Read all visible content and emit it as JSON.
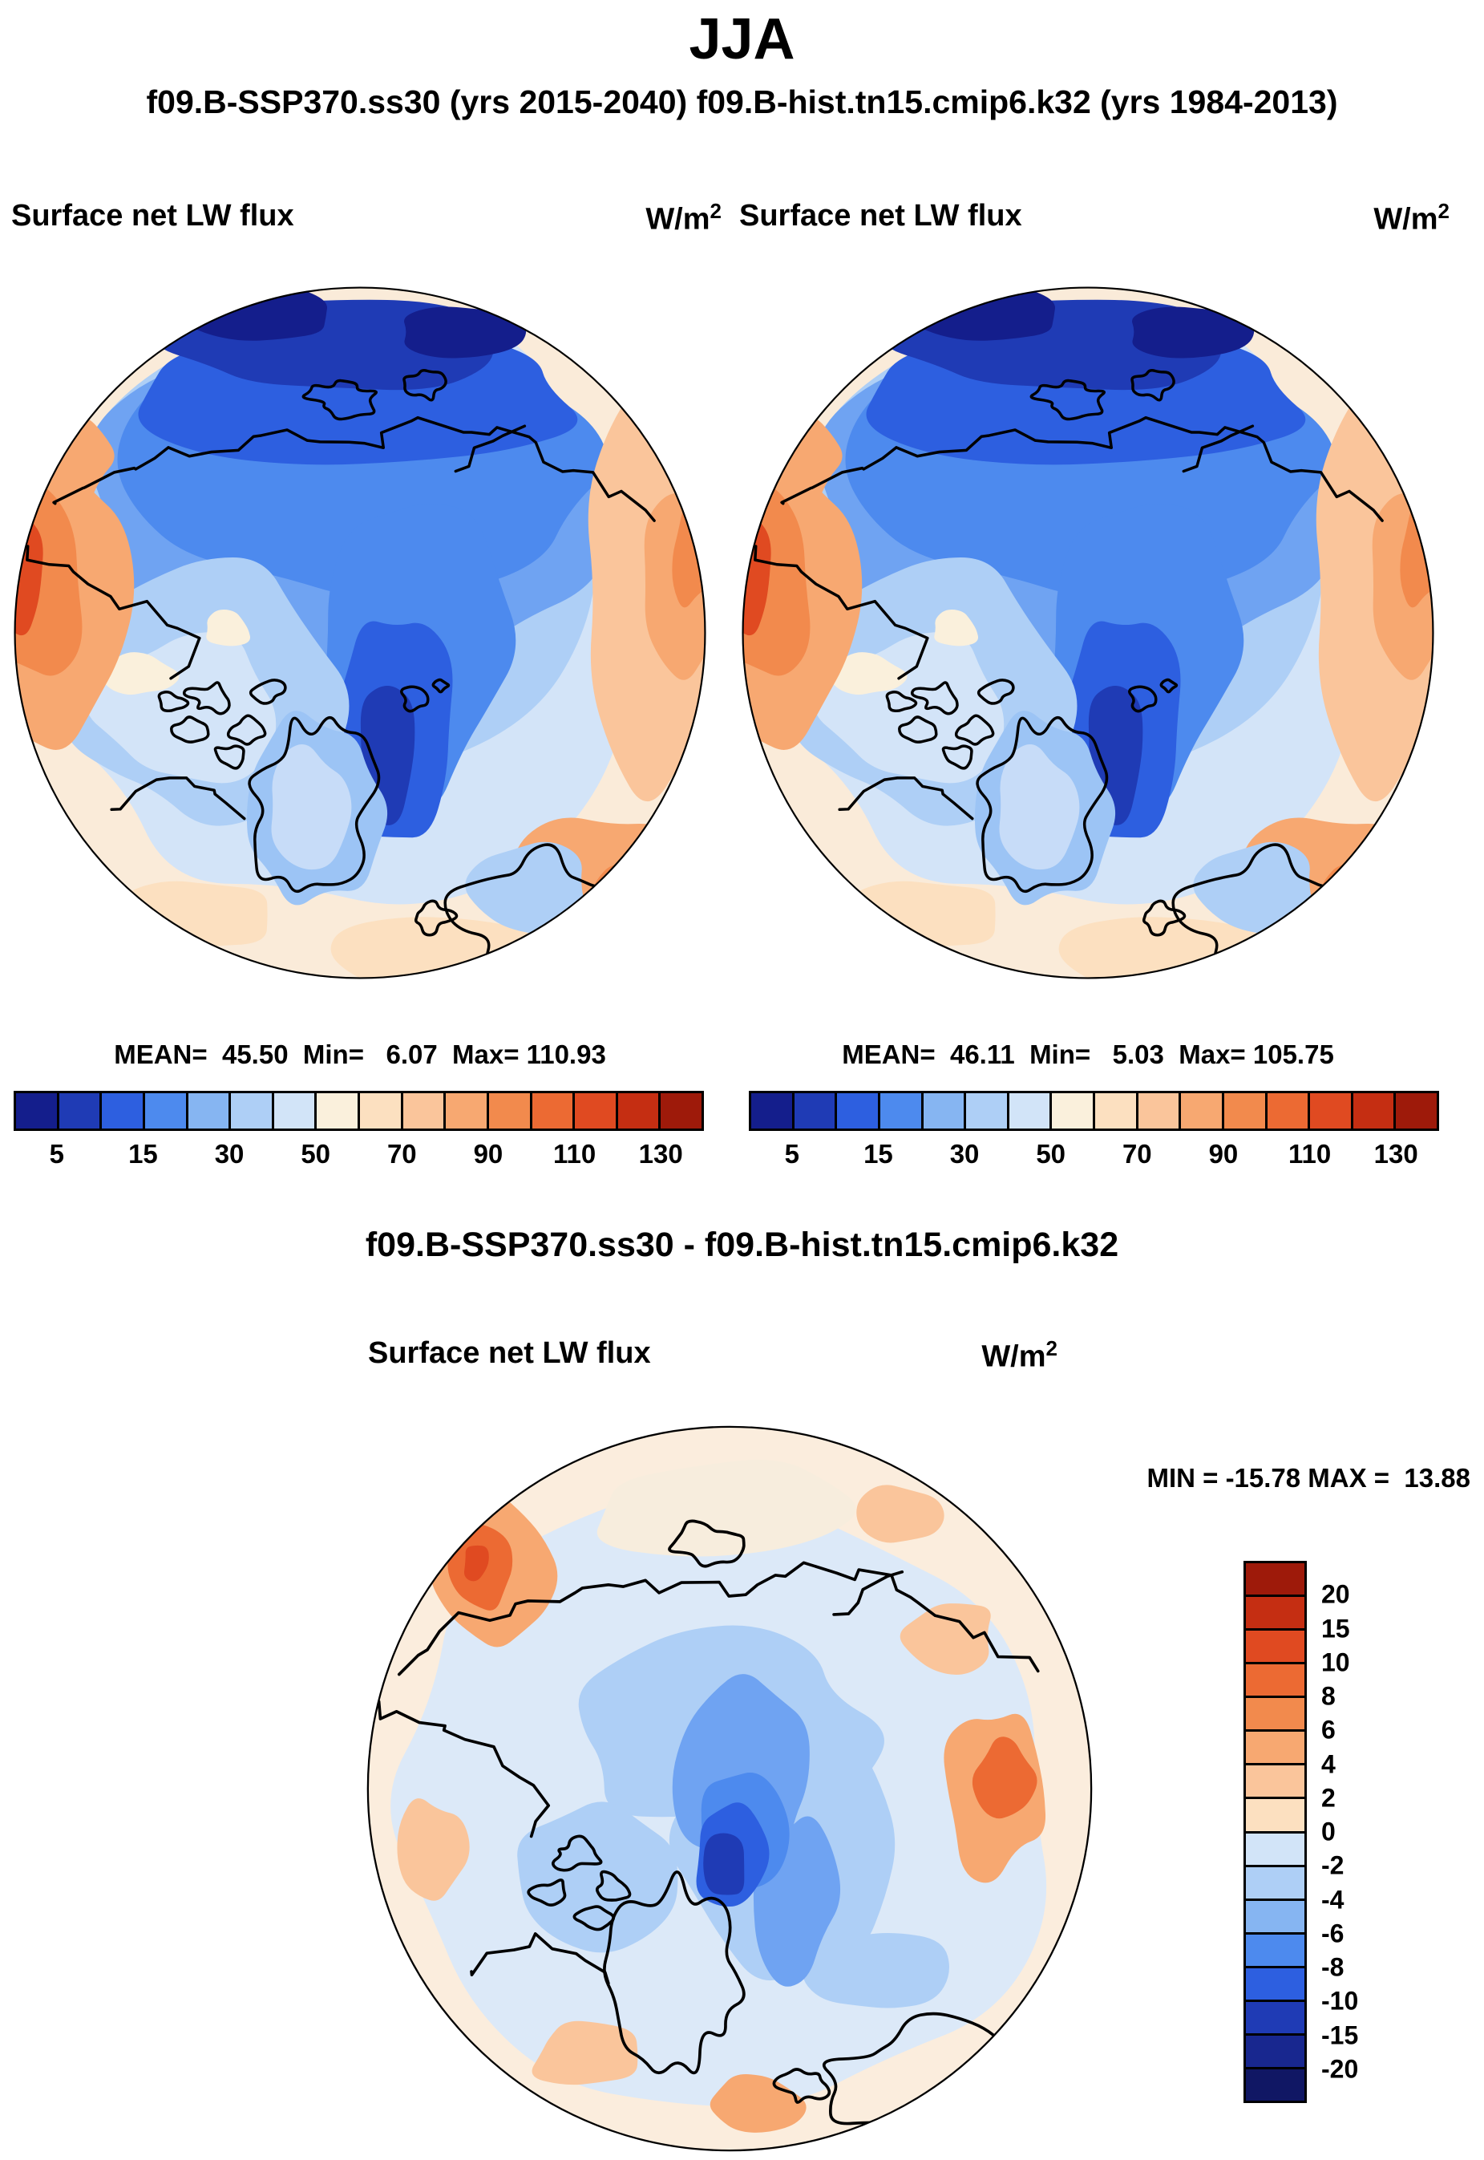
{
  "figure": {
    "title": "JJA",
    "subtitle": "f09.B-SSP370.ss30 (yrs 2015-2040)  f09.B-hist.tn15.cmip6.k32 (yrs 1984-2013)",
    "diff_title": "f09.B-SSP370.ss30 - f09.B-hist.tn15.cmip6.k32"
  },
  "panel_left": {
    "var_label": "Surface net LW flux",
    "units_base": "W/m",
    "units_exp": "2",
    "stats_line": "MEAN=  45.50  Min=   6.07  Max= 110.93"
  },
  "panel_right": {
    "var_label": "Surface net LW flux",
    "units_base": "W/m",
    "units_exp": "2",
    "stats_line": "MEAN=  46.11  Min=   5.03  Max= 105.75"
  },
  "panel_diff": {
    "var_label": "Surface net LW flux",
    "units_base": "W/m",
    "units_exp": "2",
    "minmax_line": "MIN = -15.78 MAX =  13.88"
  },
  "colorbar_h": {
    "colors": [
      "#141E8C",
      "#1F3BB5",
      "#2D5FE0",
      "#4D8AEE",
      "#86B5F2",
      "#AECFF6",
      "#D2E4F8",
      "#FAF0DC",
      "#FCE0C0",
      "#FAC59B",
      "#F7A871",
      "#F28A4D",
      "#EC6A33",
      "#E04A21",
      "#C52E12",
      "#9E1A0A"
    ],
    "ticks": [
      {
        "label": "5",
        "index": 1
      },
      {
        "label": "15",
        "index": 3
      },
      {
        "label": "30",
        "index": 5
      },
      {
        "label": "50",
        "index": 7
      },
      {
        "label": "70",
        "index": 9
      },
      {
        "label": "90",
        "index": 11
      },
      {
        "label": "110",
        "index": 13
      },
      {
        "label": "130",
        "index": 15
      }
    ]
  },
  "colorbar_v": {
    "colors": [
      "#9E1A0A",
      "#C52E12",
      "#E04A21",
      "#EC6A33",
      "#F28A4D",
      "#F7A871",
      "#FAC59B",
      "#FCE0C0",
      "#D2E4F8",
      "#AECFF6",
      "#86B5F2",
      "#4D8AEE",
      "#2D5FE0",
      "#1F3BB5",
      "#18278F",
      "#101764"
    ],
    "ticks": [
      {
        "label": "20",
        "index": 1
      },
      {
        "label": "15",
        "index": 2
      },
      {
        "label": "10",
        "index": 3
      },
      {
        "label": "8",
        "index": 4
      },
      {
        "label": "6",
        "index": 5
      },
      {
        "label": "4",
        "index": 6
      },
      {
        "label": "2",
        "index": 7
      },
      {
        "label": "0",
        "index": 8
      },
      {
        "label": "-2",
        "index": 9
      },
      {
        "label": "-4",
        "index": 10
      },
      {
        "label": "-6",
        "index": 11
      },
      {
        "label": "-8",
        "index": 12
      },
      {
        "label": "-10",
        "index": 13
      },
      {
        "label": "-15",
        "index": 14
      },
      {
        "label": "-20",
        "index": 15
      }
    ]
  },
  "map_colors": {
    "base": "#FAEBD9",
    "base2": "#FBEDDD",
    "paleBlue": "#D3E4F8",
    "paleBlue2": "#DCE9F8",
    "lightBlue": "#AECFF6",
    "medBlue": "#6FA3F2",
    "blue": "#4D8AEE",
    "deepBlue": "#2D5FE0",
    "navy": "#1F3BB5",
    "darkNavy": "#141E8C",
    "cream": "#FAF0DC",
    "cream2": "#F7EDDD",
    "palePeach": "#FCE0C0",
    "peach": "#FAC59B",
    "lightOrange": "#F7A871",
    "orange": "#F28A4D",
    "deepOrange": "#EC6A33",
    "red": "#E04A21",
    "greenlandBlue": "#9CC4F5",
    "innerPale": "#C7DCF8"
  },
  "chart_data": [
    {
      "type": "heatmap",
      "subtype": "polar_filled_contour_map",
      "panel": "top-left",
      "title": "Surface net LW flux",
      "season": "JJA",
      "run": "f09.B-SSP370.ss30",
      "years": "2015-2040",
      "units": "W/m2",
      "stats": {
        "mean": 45.5,
        "min": 6.07,
        "max": 110.93
      },
      "contour_levels": [
        5,
        10,
        15,
        20,
        30,
        40,
        50,
        60,
        70,
        80,
        90,
        100,
        110,
        120,
        130
      ],
      "labeled_levels": [
        5,
        15,
        30,
        50,
        70,
        90,
        110,
        130
      ],
      "palette_low_to_high": [
        "#141E8C",
        "#1F3BB5",
        "#2D5FE0",
        "#4D8AEE",
        "#86B5F2",
        "#AECFF6",
        "#D2E4F8",
        "#FAF0DC",
        "#FCE0C0",
        "#FAC59B",
        "#F7A871",
        "#F28A4D",
        "#EC6A33",
        "#E04A21",
        "#C52E12",
        "#9E1A0A"
      ],
      "legend_position": "below"
    },
    {
      "type": "heatmap",
      "subtype": "polar_filled_contour_map",
      "panel": "top-right",
      "title": "Surface net LW flux",
      "season": "JJA",
      "run": "f09.B-hist.tn15.cmip6.k32",
      "years": "1984-2013",
      "units": "W/m2",
      "stats": {
        "mean": 46.11,
        "min": 5.03,
        "max": 105.75
      },
      "contour_levels": [
        5,
        10,
        15,
        20,
        30,
        40,
        50,
        60,
        70,
        80,
        90,
        100,
        110,
        120,
        130
      ],
      "labeled_levels": [
        5,
        15,
        30,
        50,
        70,
        90,
        110,
        130
      ],
      "palette_low_to_high": [
        "#141E8C",
        "#1F3BB5",
        "#2D5FE0",
        "#4D8AEE",
        "#86B5F2",
        "#AECFF6",
        "#D2E4F8",
        "#FAF0DC",
        "#FCE0C0",
        "#FAC59B",
        "#F7A871",
        "#F28A4D",
        "#EC6A33",
        "#E04A21",
        "#C52E12",
        "#9E1A0A"
      ],
      "legend_position": "below"
    },
    {
      "type": "heatmap",
      "subtype": "polar_filled_contour_difference_map",
      "panel": "bottom",
      "title": "Surface net LW flux",
      "expression": "f09.B-SSP370.ss30 - f09.B-hist.tn15.cmip6.k32",
      "units": "W/m2",
      "stats": {
        "min": -15.78,
        "max": 13.88
      },
      "contour_levels": [
        -20,
        -15,
        -10,
        -8,
        -6,
        -4,
        -2,
        0,
        2,
        4,
        6,
        8,
        10,
        15,
        20
      ],
      "palette_high_to_low": [
        "#9E1A0A",
        "#C52E12",
        "#E04A21",
        "#EC6A33",
        "#F28A4D",
        "#F7A871",
        "#FAC59B",
        "#FCE0C0",
        "#D2E4F8",
        "#AECFF6",
        "#86B5F2",
        "#4D8AEE",
        "#2D5FE0",
        "#1F3BB5",
        "#18278F",
        "#101764"
      ],
      "legend_position": "right"
    }
  ]
}
